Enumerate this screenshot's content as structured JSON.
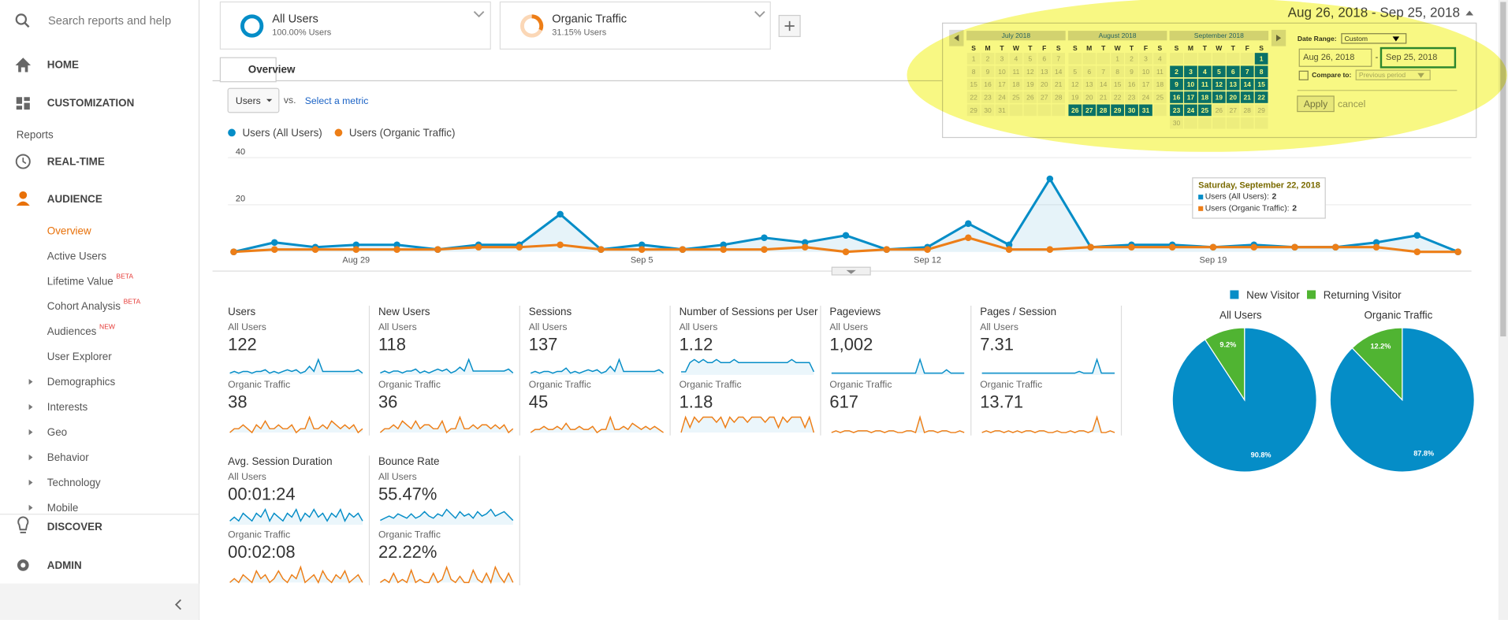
{
  "sidebar": {
    "search": "Search reports and help",
    "home": "HOME",
    "customization": "CUSTOMIZATION",
    "reports": "Reports",
    "realtime": "REAL-TIME",
    "audience": "AUDIENCE",
    "audience_items": [
      {
        "label": "Overview"
      },
      {
        "label": "Active Users"
      },
      {
        "label": "Lifetime Value",
        "badge": "BETA"
      },
      {
        "label": "Cohort Analysis",
        "badge": "BETA"
      },
      {
        "label": "Audiences",
        "badge": "NEW"
      },
      {
        "label": "User Explorer"
      },
      {
        "label": "Demographics"
      },
      {
        "label": "Interests"
      },
      {
        "label": "Geo"
      },
      {
        "label": "Behavior"
      },
      {
        "label": "Technology"
      },
      {
        "label": "Mobile"
      }
    ],
    "discover": "DISCOVER",
    "admin": "ADMIN"
  },
  "segments": [
    {
      "name": "All Users",
      "share": "100.00% Users"
    },
    {
      "name": "Organic Traffic",
      "share": "31.15% Users"
    }
  ],
  "date_range": "Aug 26, 2018 - Sep 25, 2018",
  "tab": "Overview",
  "metric_select": "Users",
  "vs": "vs.",
  "select_metric": "Select a metric",
  "calendar": {
    "weekdays": [
      "S",
      "M",
      "T",
      "W",
      "T",
      "F",
      "S"
    ],
    "months": [
      {
        "title": "July 2018",
        "weeks": [
          [
            1,
            2,
            3,
            4,
            5,
            6,
            7
          ],
          [
            8,
            9,
            10,
            11,
            12,
            13,
            14
          ],
          [
            15,
            16,
            17,
            18,
            19,
            20,
            21
          ],
          [
            22,
            23,
            24,
            25,
            26,
            27,
            28
          ],
          [
            29,
            30,
            31,
            null,
            null,
            null,
            null
          ]
        ]
      },
      {
        "title": "August 2018",
        "selected": [
          26,
          31
        ],
        "weeks": [
          [
            null,
            null,
            null,
            1,
            2,
            3,
            4
          ],
          [
            5,
            6,
            7,
            8,
            9,
            10,
            11
          ],
          [
            12,
            13,
            14,
            15,
            16,
            17,
            18
          ],
          [
            19,
            20,
            21,
            22,
            23,
            24,
            25
          ],
          [
            26,
            27,
            28,
            29,
            30,
            31,
            null
          ]
        ]
      },
      {
        "title": "September 2018",
        "selected": [
          1,
          25
        ],
        "weeks": [
          [
            null,
            null,
            null,
            null,
            null,
            null,
            1
          ],
          [
            2,
            3,
            4,
            5,
            6,
            7,
            8
          ],
          [
            9,
            10,
            11,
            12,
            13,
            14,
            15
          ],
          [
            16,
            17,
            18,
            19,
            20,
            21,
            22
          ],
          [
            23,
            24,
            25,
            26,
            27,
            28,
            29
          ],
          [
            30,
            null,
            null,
            null,
            null,
            null,
            null
          ]
        ]
      }
    ],
    "date_range_label": "Date Range:",
    "range_type": "Custom",
    "start": "Aug 26, 2018",
    "dash": "-",
    "end": "Sep 25, 2018",
    "compare_label": "Compare to:",
    "compare_type": "Previous period",
    "apply": "Apply",
    "cancel": "cancel"
  },
  "chart_data": [
    {
      "type": "line",
      "categories": [
        null,
        null,
        null,
        "Aug 29",
        null,
        null,
        null,
        null,
        null,
        null,
        "Sep 5",
        null,
        null,
        null,
        null,
        null,
        null,
        "Sep 12",
        null,
        null,
        null,
        null,
        null,
        null,
        "Sep 19",
        null,
        null,
        null,
        null,
        null,
        null
      ],
      "series": [
        {
          "name": "Users (All Users)",
          "color": "#058dc7",
          "values": [
            0,
            4,
            2,
            3,
            3,
            1,
            3,
            3,
            16,
            1,
            3,
            1,
            3,
            6,
            4,
            7,
            1,
            2,
            12,
            3,
            31,
            2,
            3,
            3,
            2,
            3,
            2,
            2,
            4,
            7,
            0
          ]
        },
        {
          "name": "Users (Organic Traffic)",
          "color": "#ed7e17",
          "values": [
            0,
            1,
            1,
            1,
            1,
            1,
            2,
            2,
            3,
            1,
            1,
            1,
            1,
            1,
            2,
            0,
            1,
            1,
            6,
            1,
            1,
            2,
            2,
            2,
            2,
            2,
            2,
            2,
            2,
            0,
            0
          ]
        }
      ],
      "ylim": [
        0,
        40
      ],
      "yticks": [
        20,
        40
      ],
      "grid": true,
      "tooltip": {
        "title": "Saturday, September 22, 2018",
        "rows": [
          {
            "label": "Users (All Users):",
            "value": 2
          },
          {
            "label": "Users (Organic Traffic):",
            "value": 2
          }
        ]
      }
    },
    {
      "type": "pie",
      "title": "All Users",
      "categories": [
        "New Visitor",
        "Returning Visitor"
      ],
      "colors": [
        "#058dc7",
        "#50b432"
      ],
      "values": [
        90.8,
        9.2
      ],
      "value_labels": [
        "90.8%",
        "9.2%"
      ]
    },
    {
      "type": "pie",
      "title": "Organic Traffic",
      "categories": [
        "New Visitor",
        "Returning Visitor"
      ],
      "colors": [
        "#058dc7",
        "#50b432"
      ],
      "values": [
        87.8,
        12.2
      ],
      "value_labels": [
        "87.8%",
        "12.2%"
      ]
    }
  ],
  "metrics": [
    {
      "name": "Users",
      "rows": [
        {
          "segment": "All Users",
          "value": "122",
          "spark": [
            1,
            2,
            1,
            2,
            2,
            1,
            2,
            2,
            3,
            1,
            2,
            1,
            2,
            3,
            2,
            3,
            1,
            2,
            5,
            2,
            9,
            2,
            2,
            2,
            2,
            2,
            2,
            2,
            2,
            3,
            1
          ]
        },
        {
          "segment": "Organic Traffic",
          "value": "38",
          "spark": [
            0,
            1,
            1,
            2,
            1,
            0,
            2,
            1,
            3,
            1,
            1,
            2,
            1,
            1,
            2,
            0,
            1,
            1,
            4,
            1,
            1,
            2,
            1,
            3,
            2,
            1,
            2,
            1,
            2,
            0,
            1
          ]
        }
      ]
    },
    {
      "name": "New Users",
      "rows": [
        {
          "segment": "All Users",
          "value": "118",
          "spark": [
            1,
            2,
            1,
            2,
            2,
            1,
            2,
            2,
            3,
            1,
            2,
            1,
            2,
            3,
            2,
            3,
            1,
            2,
            4,
            2,
            8,
            2,
            2,
            2,
            2,
            2,
            2,
            2,
            2,
            3,
            1
          ]
        },
        {
          "segment": "Organic Traffic",
          "value": "36",
          "spark": [
            0,
            1,
            1,
            2,
            1,
            3,
            2,
            1,
            3,
            1,
            2,
            2,
            1,
            1,
            3,
            0,
            1,
            1,
            4,
            1,
            1,
            2,
            1,
            2,
            2,
            1,
            2,
            1,
            2,
            0,
            1
          ]
        }
      ]
    },
    {
      "name": "Sessions",
      "rows": [
        {
          "segment": "All Users",
          "value": "137",
          "spark": [
            1,
            2,
            1,
            2,
            2,
            1,
            2,
            2,
            4,
            1,
            2,
            1,
            2,
            3,
            2,
            3,
            1,
            2,
            5,
            2,
            9,
            2,
            2,
            2,
            2,
            2,
            2,
            2,
            2,
            3,
            1
          ]
        },
        {
          "segment": "Organic Traffic",
          "value": "45",
          "spark": [
            0,
            1,
            1,
            2,
            1,
            1,
            2,
            1,
            3,
            1,
            1,
            2,
            1,
            1,
            2,
            0,
            1,
            1,
            5,
            1,
            1,
            2,
            1,
            3,
            2,
            1,
            2,
            1,
            2,
            1,
            0
          ]
        }
      ]
    },
    {
      "name": "Number of Sessions per User",
      "rows": [
        {
          "segment": "All Users",
          "value": "1.12",
          "spark": [
            1,
            1,
            4,
            5,
            4,
            5,
            4,
            4,
            5,
            4,
            4,
            4,
            5,
            4,
            4,
            4,
            4,
            4,
            4,
            4,
            4,
            4,
            4,
            4,
            4,
            5,
            4,
            4,
            4,
            4,
            1
          ]
        },
        {
          "segment": "Organic Traffic",
          "value": "1.18",
          "spark": [
            0,
            3,
            1,
            3,
            2,
            3,
            3,
            3,
            2,
            3,
            1,
            3,
            2,
            3,
            3,
            2,
            3,
            3,
            3,
            2,
            3,
            3,
            1,
            3,
            2,
            3,
            3,
            3,
            1,
            3,
            0
          ]
        }
      ]
    },
    {
      "name": "Pageviews",
      "rows": [
        {
          "segment": "All Users",
          "value": "1,002",
          "spark": [
            1,
            1,
            1,
            1,
            1,
            1,
            1,
            1,
            1,
            1,
            1,
            1,
            1,
            1,
            1,
            1,
            1,
            1,
            1,
            1,
            9,
            1,
            1,
            1,
            1,
            1,
            3,
            1,
            1,
            1,
            1
          ]
        },
        {
          "segment": "Organic Traffic",
          "value": "617",
          "spark": [
            0,
            1,
            0,
            1,
            1,
            0,
            1,
            1,
            1,
            0,
            1,
            1,
            0,
            1,
            1,
            0,
            0,
            1,
            1,
            0,
            9,
            0,
            1,
            1,
            0,
            1,
            1,
            0,
            0,
            1,
            0
          ]
        }
      ]
    },
    {
      "name": "Pages / Session",
      "rows": [
        {
          "segment": "All Users",
          "value": "7.31",
          "spark": [
            1,
            1,
            1,
            1,
            1,
            1,
            1,
            1,
            1,
            1,
            1,
            1,
            1,
            1,
            1,
            1,
            1,
            1,
            1,
            1,
            1,
            1,
            2,
            1,
            1,
            1,
            9,
            1,
            1,
            1,
            1
          ]
        },
        {
          "segment": "Organic Traffic",
          "value": "13.71",
          "spark": [
            0,
            1,
            0,
            1,
            1,
            0,
            1,
            0,
            1,
            0,
            1,
            1,
            0,
            1,
            1,
            0,
            0,
            1,
            0,
            0,
            1,
            0,
            1,
            1,
            0,
            1,
            9,
            0,
            0,
            1,
            0
          ]
        }
      ]
    },
    {
      "name": "Avg. Session Duration",
      "rows": [
        {
          "segment": "All Users",
          "value": "00:01:24",
          "spark": [
            1,
            2,
            1,
            3,
            2,
            1,
            3,
            2,
            4,
            1,
            3,
            2,
            1,
            3,
            2,
            4,
            1,
            3,
            2,
            4,
            2,
            3,
            1,
            3,
            2,
            4,
            1,
            3,
            2,
            3,
            1
          ]
        },
        {
          "segment": "Organic Traffic",
          "value": "00:02:08",
          "spark": [
            0,
            1,
            0,
            2,
            1,
            0,
            3,
            1,
            2,
            0,
            1,
            3,
            1,
            0,
            2,
            1,
            4,
            0,
            1,
            2,
            0,
            3,
            1,
            0,
            2,
            1,
            3,
            0,
            1,
            2,
            0
          ]
        }
      ]
    },
    {
      "name": "Bounce Rate",
      "rows": [
        {
          "segment": "All Users",
          "value": "55.47%",
          "spark": [
            2,
            3,
            4,
            3,
            5,
            4,
            3,
            5,
            3,
            4,
            6,
            4,
            3,
            5,
            4,
            7,
            5,
            3,
            6,
            4,
            5,
            3,
            6,
            4,
            5,
            7,
            4,
            5,
            6,
            4,
            2
          ]
        },
        {
          "segment": "Organic Traffic",
          "value": "22.22%",
          "spark": [
            0,
            1,
            0,
            3,
            0,
            1,
            0,
            4,
            0,
            1,
            0,
            0,
            3,
            0,
            1,
            5,
            1,
            0,
            2,
            0,
            0,
            4,
            1,
            0,
            3,
            0,
            5,
            2,
            0,
            3,
            0
          ]
        }
      ]
    }
  ]
}
